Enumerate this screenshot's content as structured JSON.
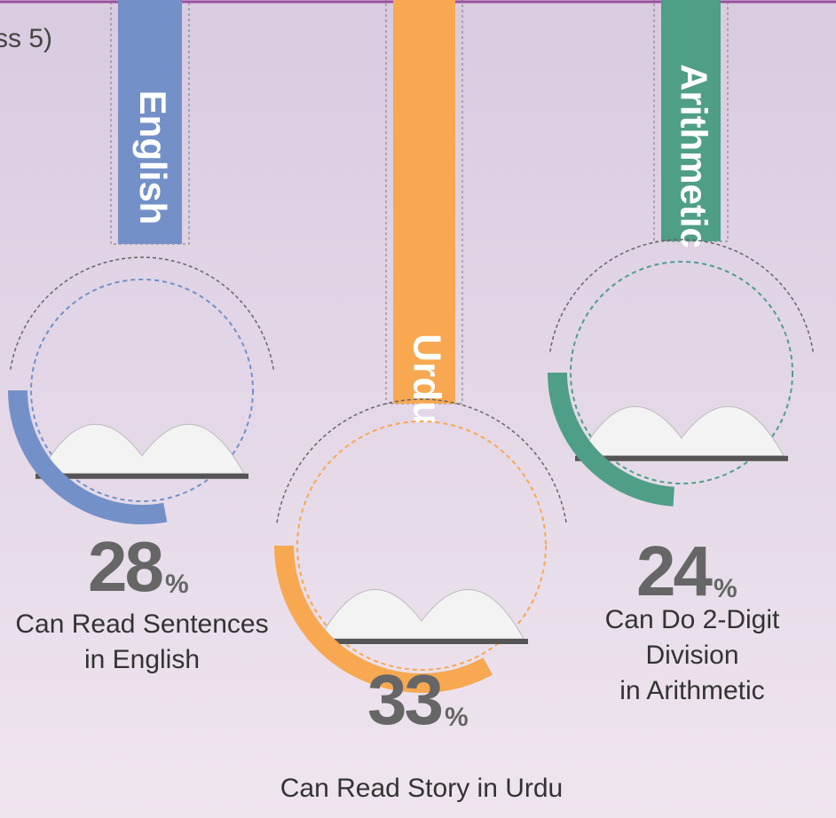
{
  "header_fragment": "ss 5)",
  "items": [
    {
      "subject": "English",
      "value": 28,
      "unit": "%",
      "caption": [
        "Can Read Sentences",
        "in English"
      ],
      "color": "#7490c8"
    },
    {
      "subject": "Urdu",
      "value": 33,
      "unit": "%",
      "caption": [
        "Can Read Story in Urdu"
      ],
      "color": "#f7a851"
    },
    {
      "subject": "Arithmetic",
      "value": 24,
      "unit": "%",
      "caption": [
        "Can Do 2-Digit",
        "Division",
        "in Arithmetic"
      ],
      "color": "#4f9e88"
    }
  ]
}
